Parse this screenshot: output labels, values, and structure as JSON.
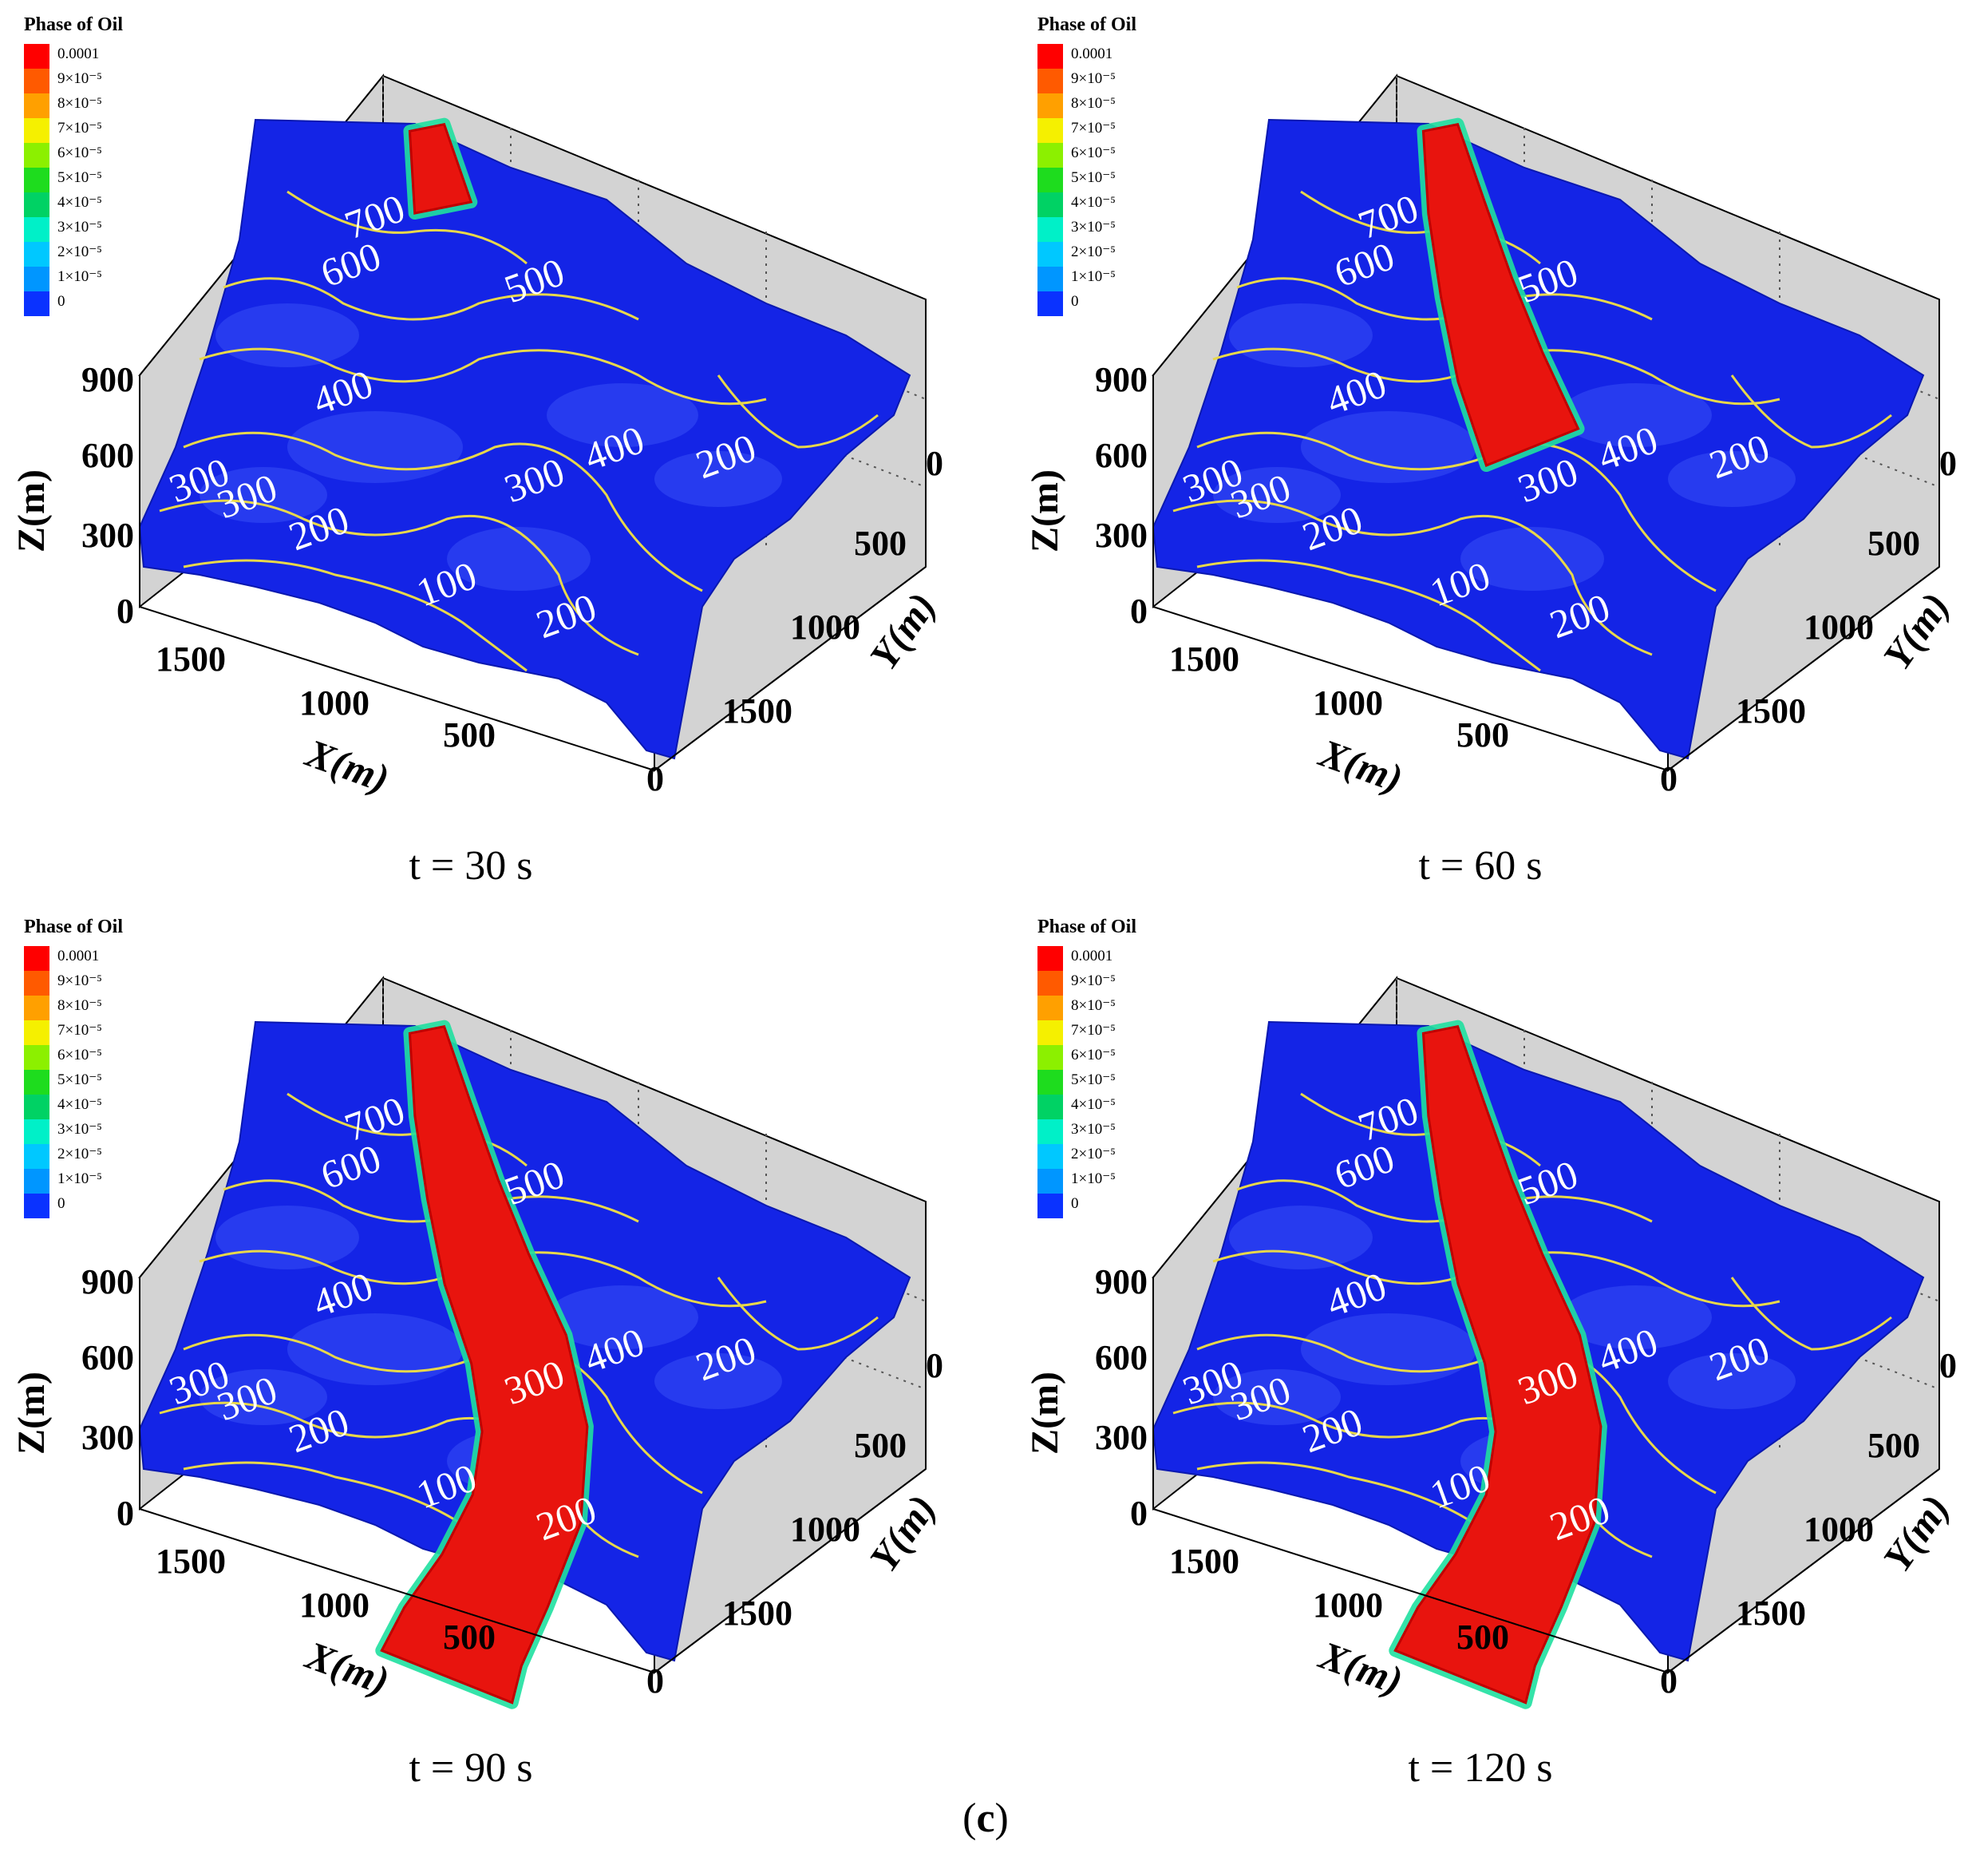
{
  "figure_label": {
    "open": "(",
    "letter": "c",
    "close": ")"
  },
  "legend": {
    "title": "Phase of Oil",
    "levels": [
      {
        "label": "0.0001",
        "color": "#ff0000"
      },
      {
        "label": "9×10⁻⁵",
        "color": "#ff5a00"
      },
      {
        "label": "8×10⁻⁵",
        "color": "#ffa000"
      },
      {
        "label": "7×10⁻⁵",
        "color": "#f5f000"
      },
      {
        "label": "6×10⁻⁵",
        "color": "#8cf000"
      },
      {
        "label": "5×10⁻⁵",
        "color": "#1edc1e"
      },
      {
        "label": "4×10⁻⁵",
        "color": "#00d264"
      },
      {
        "label": "3×10⁻⁵",
        "color": "#00f0c8"
      },
      {
        "label": "2×10⁻⁵",
        "color": "#00c8ff"
      },
      {
        "label": "1×10⁻⁵",
        "color": "#0096ff"
      },
      {
        "label": "0",
        "color": "#0a32ff"
      }
    ]
  },
  "axes": {
    "z_label": "Z(m)",
    "x_label": "X(m)",
    "y_label": "Y(m)",
    "z_ticks": [
      "0",
      "300",
      "600",
      "900"
    ],
    "x_ticks": [
      "1500",
      "1000",
      "500",
      "0"
    ],
    "y_ticks": [
      "0",
      "500",
      "1000",
      "1500"
    ]
  },
  "contour_labels": [
    "700",
    "600",
    "500",
    "400",
    "300",
    "400",
    "300",
    "200",
    "300",
    "200",
    "100",
    "200"
  ],
  "colors": {
    "terrain": "#1424e6",
    "contour": "#e8d84a",
    "oil": "#e8140e",
    "oil_edge": "#20e0a0",
    "wall": "#d3d3d3"
  },
  "panels": [
    {
      "caption": "t = 30 s",
      "spill_progress": 0.17
    },
    {
      "caption": "t = 60 s",
      "spill_progress": 0.47
    },
    {
      "caption": "t = 90 s",
      "spill_progress": 0.95
    },
    {
      "caption": "t = 120 s",
      "spill_progress": 1.0
    }
  ]
}
